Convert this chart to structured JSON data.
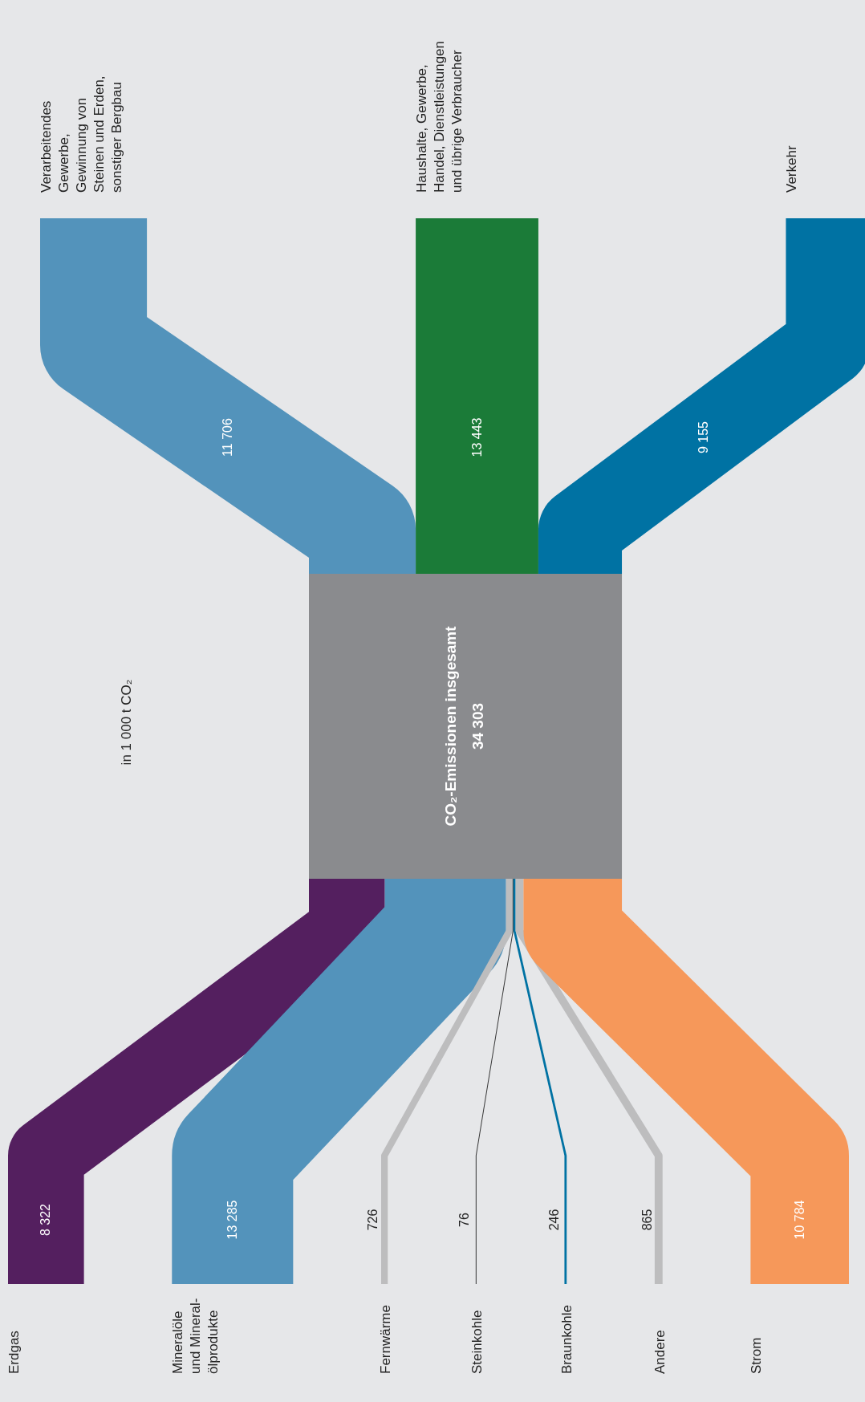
{
  "chart_data": {
    "type": "other",
    "title": "CO₂-Emissionen insgesamt",
    "totals": [
      "34 303"
    ],
    "annotations": [
      "in 1 000 t CO₂"
    ],
    "categories": [
      "Erdgas",
      "Mineralöle\nund Mineral-\nölprodukte",
      "Fernwärme",
      "Steinkohle",
      "Braunkohle",
      "Andere",
      "Strom",
      "Verarbeitendes\nGewerbe,\nGewinnung von\nSteinen und Erden,\nsonstiger Bergbau",
      "Haushalte, Gewerbe,\nHandel, Dienstleistungen\nund übrige Verbraucher",
      "Verkehr"
    ],
    "values": [
      8322,
      13285,
      726,
      76,
      246,
      865,
      10784,
      11706,
      13443,
      9155
    ],
    "value_labels": [
      "8 322",
      "13 285",
      "726",
      "76",
      "246",
      "865",
      "10 784",
      "11 706",
      "13 443",
      "9 155"
    ],
    "colors": [
      "#541f5f",
      "#5393bb",
      "#bdbdbe",
      "#1a1a1a",
      "#0072a3",
      "#bdbdbe",
      "#f6985a",
      "#5393bb",
      "#1b7b38",
      "#0072a3"
    ]
  }
}
